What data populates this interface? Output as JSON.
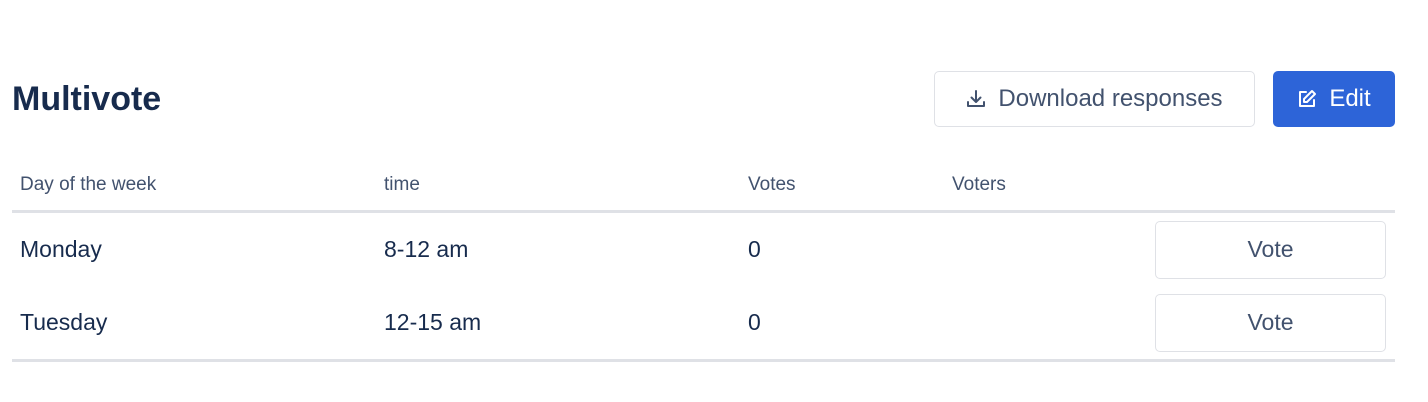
{
  "title": "Multivote",
  "toolbar": {
    "download_label": "Download responses",
    "edit_label": "Edit",
    "download_icon": "download-icon",
    "edit_icon": "edit-icon",
    "accent": "#2d64d8"
  },
  "table": {
    "headers": [
      "Day of the week",
      "time",
      "Votes",
      "Voters"
    ],
    "rows": [
      {
        "day": "Monday",
        "time": "8-12 am",
        "votes": "0",
        "voters": "",
        "action": "Vote"
      },
      {
        "day": "Tuesday",
        "time": "12-15 am",
        "votes": "0",
        "voters": "",
        "action": "Vote"
      }
    ]
  }
}
